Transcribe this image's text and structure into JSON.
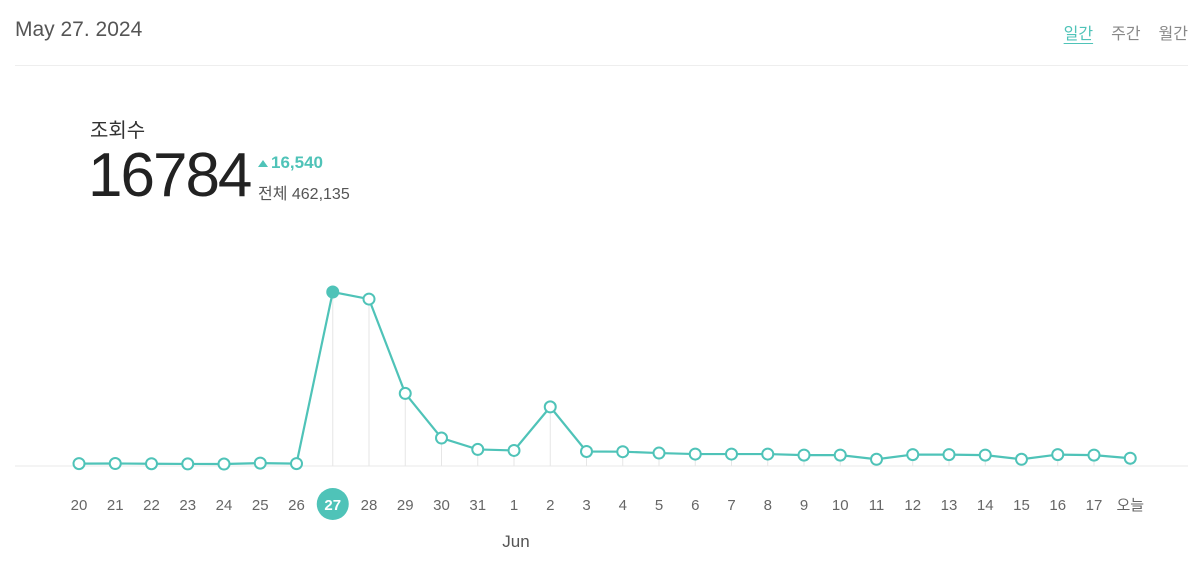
{
  "header": {
    "date": "May 27. 2024",
    "tabs": [
      {
        "label": "일간",
        "active": true
      },
      {
        "label": "주간",
        "active": false
      },
      {
        "label": "월간",
        "active": false
      }
    ]
  },
  "summary": {
    "label": "조회수",
    "value": "16784",
    "delta": "16,540",
    "total": "전체 462,135"
  },
  "colors": {
    "accent": "#4fc3b8"
  },
  "chart_data": {
    "type": "line",
    "categories": [
      "20",
      "21",
      "22",
      "23",
      "24",
      "25",
      "26",
      "27",
      "28",
      "29",
      "30",
      "31",
      "1",
      "2",
      "3",
      "4",
      "5",
      "6",
      "7",
      "8",
      "9",
      "10",
      "11",
      "12",
      "13",
      "14",
      "15",
      "16",
      "17",
      "오늘"
    ],
    "month_label": "Jun",
    "selected_index": 7,
    "series": [
      {
        "values": [
          230,
          240,
          220,
          200,
          190,
          280,
          230,
          16784,
          16100,
          7000,
          2700,
          1600,
          1500,
          5700,
          1400,
          1380,
          1250,
          1150,
          1150,
          1150,
          1050,
          1050,
          650,
          1100,
          1100,
          1050,
          650,
          1100,
          1050,
          750
        ]
      }
    ],
    "ylim": [
      0,
      17000
    ],
    "grid": false
  }
}
